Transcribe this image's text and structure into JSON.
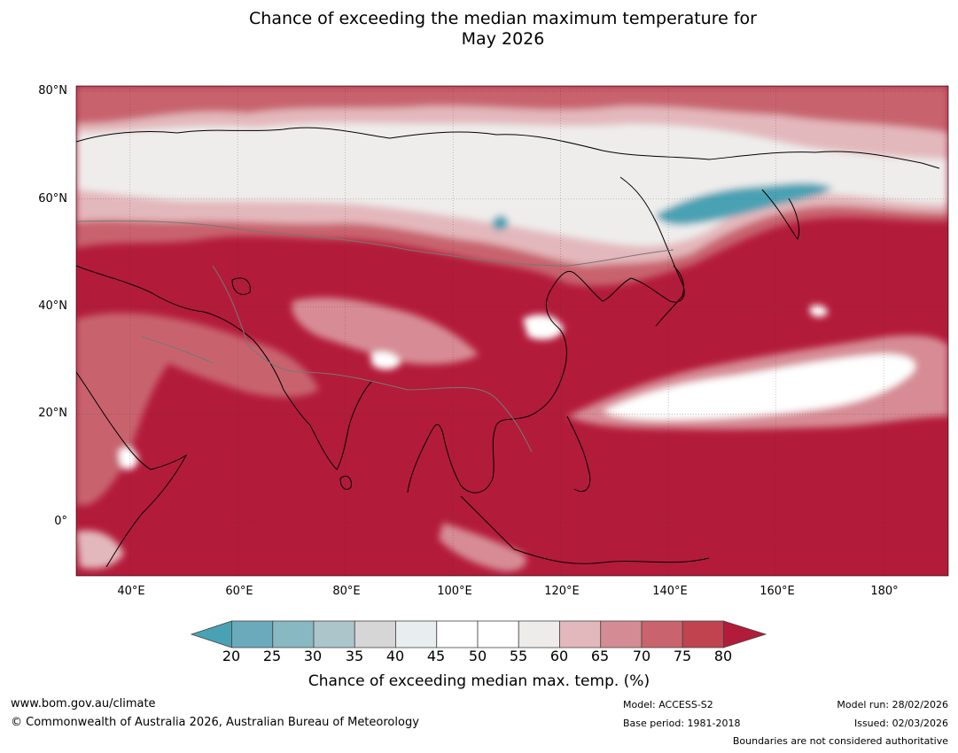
{
  "title": {
    "line1": "Chance of exceeding the median maximum temperature for",
    "line2": "May 2026"
  },
  "map": {
    "projection": "plate-carree",
    "lon_range": [
      30,
      192
    ],
    "lat_range": [
      -10,
      81
    ],
    "lat_labels": [
      "80°N",
      "60°N",
      "40°N",
      "20°N",
      "0°"
    ],
    "lon_labels": [
      "40°E",
      "60°E",
      "80°E",
      "100°E",
      "120°E",
      "140°E",
      "160°E",
      "180°"
    ],
    "colors": {
      "very_high": "#b31b3a",
      "high": "#c8646e",
      "mid_high": "#d78c95",
      "slight_high": "#e3b8bc",
      "neutral": "#eeedec",
      "neutral_white": "#ffffff",
      "slight_low": "#e4ecef",
      "low": "#acc5cb",
      "very_low": "#48a2b4",
      "coast": "#000000",
      "boundary": "#777777"
    }
  },
  "colorbar": {
    "ticks": [
      "20",
      "25",
      "30",
      "35",
      "40",
      "45",
      "50",
      "55",
      "60",
      "65",
      "70",
      "75",
      "80"
    ],
    "colors": [
      "#48a2b4",
      "#6aaabb",
      "#88b8c2",
      "#acc5cb",
      "#d6d6d6",
      "#e8eef0",
      "#ffffff",
      "#ffffff",
      "#eeeceb",
      "#e3b8bc",
      "#d58b93",
      "#c9646e",
      "#c0434f",
      "#b31b3a"
    ],
    "label": "Chance of exceeding median max. temp. (%)"
  },
  "footer": {
    "website": "www.bom.gov.au/climate",
    "copyright": "© Commonwealth of Australia 2026, Australian Bureau of Meteorology",
    "model": "Model: ACCESS-S2",
    "base_period": "Base period: 1981-2018",
    "model_run": "Model run: 28/02/2026",
    "issued": "Issued: 02/03/2026",
    "disclaimer": "Boundaries are not considered authoritative"
  }
}
